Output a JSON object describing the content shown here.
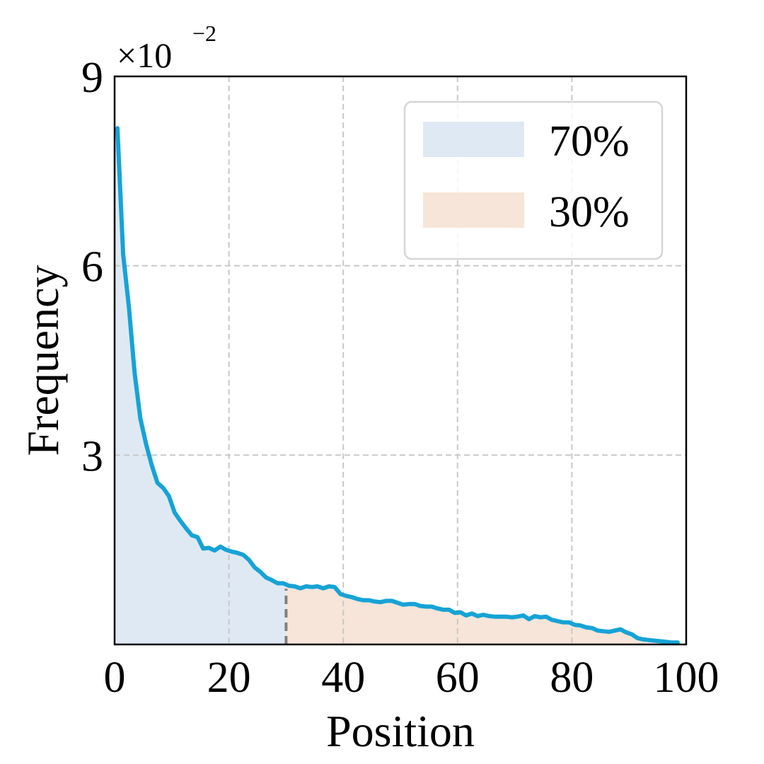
{
  "chart_data": {
    "type": "area",
    "title": "",
    "xlabel": "Position",
    "ylabel": "Frequency",
    "xlim": [
      0,
      100
    ],
    "ylim": [
      0,
      0.09
    ],
    "xticks": [
      0,
      20,
      40,
      60,
      80,
      100
    ],
    "xtick_labels": [
      "0",
      "20",
      "40",
      "60",
      "80",
      "100"
    ],
    "yticks": [
      0.03,
      0.06,
      0.09
    ],
    "ytick_labels": [
      "3",
      "6",
      "9"
    ],
    "y_multiplier": {
      "base": "×10",
      "exponent": "−2"
    },
    "grid": true,
    "legend_position": "top-right",
    "split_x": 30,
    "regions": [
      {
        "name": "70%",
        "x_range": [
          0,
          30
        ],
        "color": "#dfe9f4"
      },
      {
        "name": "30%",
        "x_range": [
          30,
          99
        ],
        "color": "#f6e5d8"
      }
    ],
    "line_color": "#16a3d6",
    "split_line_color": "#808080",
    "series": [
      {
        "x": [
          0.5,
          1.5,
          2.5,
          3.5,
          4.5,
          5.5,
          6.5,
          7.5,
          8.5,
          9.5,
          10.5,
          11.5,
          12.5,
          13.5,
          14.5,
          15.5,
          16.5,
          17.5,
          18.5,
          19.5,
          20.5,
          21.5,
          22.5,
          23.5,
          24.5,
          25.5,
          26.5,
          27.5,
          28.5,
          29.5,
          30.5,
          31.5,
          32.5,
          33.5,
          34.5,
          35.5,
          36.5,
          37.5,
          38.5,
          39.5,
          40.5,
          41.5,
          42.5,
          43.5,
          44.5,
          45.5,
          46.5,
          47.5,
          48.5,
          49.5,
          50.5,
          51.5,
          52.5,
          53.5,
          54.5,
          55.5,
          56.5,
          57.5,
          58.5,
          59.5,
          60.5,
          61.5,
          62.5,
          63.5,
          64.5,
          65.5,
          66.5,
          67.5,
          68.5,
          69.5,
          70.5,
          71.5,
          72.5,
          73.5,
          74.5,
          75.5,
          76.5,
          77.5,
          78.5,
          79.5,
          80.5,
          81.5,
          82.5,
          83.5,
          84.5,
          85.5,
          86.5,
          87.5,
          88.5,
          89.5,
          90.5,
          91.5,
          92.5,
          93.5,
          94.5,
          95.5,
          96.5,
          97.5,
          98.5
        ],
        "values": [
          0.0818,
          0.0618,
          0.0535,
          0.043,
          0.0358,
          0.0318,
          0.0284,
          0.0256,
          0.0248,
          0.0235,
          0.0209,
          0.0196,
          0.0184,
          0.0173,
          0.017,
          0.0152,
          0.0153,
          0.0149,
          0.0155,
          0.015,
          0.0147,
          0.0145,
          0.0142,
          0.0134,
          0.0122,
          0.0115,
          0.0106,
          0.0102,
          0.0097,
          0.0097,
          0.0093,
          0.0092,
          0.0089,
          0.0092,
          0.0091,
          0.0092,
          0.0089,
          0.0092,
          0.0091,
          0.008,
          0.0077,
          0.0075,
          0.0072,
          0.007,
          0.007,
          0.0068,
          0.0067,
          0.0069,
          0.0069,
          0.0066,
          0.0063,
          0.0064,
          0.0064,
          0.0061,
          0.006,
          0.006,
          0.0057,
          0.0055,
          0.0055,
          0.005,
          0.0051,
          0.0046,
          0.0049,
          0.0045,
          0.0047,
          0.0045,
          0.0044,
          0.0044,
          0.0044,
          0.0043,
          0.0044,
          0.0046,
          0.004,
          0.0045,
          0.0043,
          0.0044,
          0.0039,
          0.0037,
          0.0035,
          0.0035,
          0.0031,
          0.003,
          0.0027,
          0.0026,
          0.0022,
          0.0021,
          0.002,
          0.0022,
          0.0024,
          0.0019,
          0.0016,
          0.001,
          0.0008,
          0.0007,
          0.0006,
          0.0005,
          0.0004,
          0.0003,
          0.0003
        ]
      }
    ]
  }
}
